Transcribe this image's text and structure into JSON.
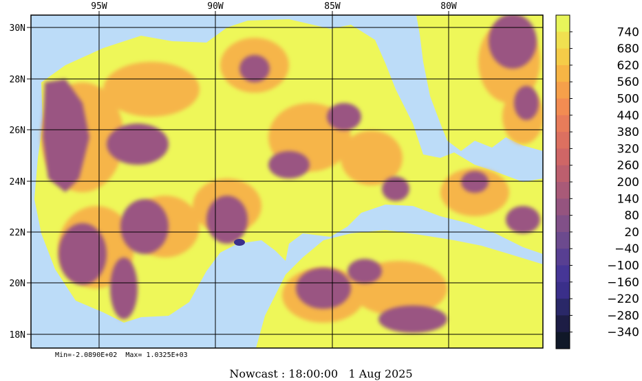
{
  "map": {
    "lon_labels": [
      "95W",
      "90W",
      "85W",
      "80W"
    ],
    "lat_labels": [
      "30N",
      "28N",
      "26N",
      "24N",
      "22N",
      "20N",
      "18N"
    ],
    "stats": {
      "min_text": "Min=-2.0890E+02",
      "max_text": "Max= 1.0325E+03"
    },
    "caption": {
      "label": "Nowcast : 18:00:00",
      "date": "1 Aug 2025"
    }
  },
  "colorbar": {
    "labels": [
      "740",
      "680",
      "620",
      "560",
      "500",
      "440",
      "380",
      "320",
      "260",
      "200",
      "140",
      "80",
      "20",
      "−40",
      "−100",
      "−160",
      "−220",
      "−280",
      "−340"
    ],
    "colors": [
      "#e8f55a",
      "#f0e050",
      "#f5cc48",
      "#f7b545",
      "#f6a04a",
      "#f28c52",
      "#e87c5a",
      "#dc7060",
      "#cf6666",
      "#bd5f6e",
      "#a95a78",
      "#95547f",
      "#815088",
      "#6c4a8e",
      "#583f92",
      "#463696",
      "#3a2f8a",
      "#2a2868",
      "#1d1d45",
      "#101828"
    ]
  },
  "colors": {
    "water": "#bcdcf8",
    "high": "#eef759",
    "mid": "#f6b54a",
    "low": "#9a5582",
    "deep_low": "#5a3d8e"
  }
}
